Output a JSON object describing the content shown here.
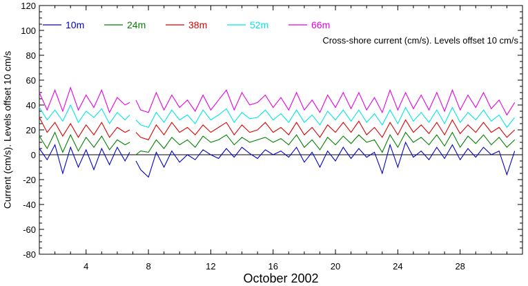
{
  "chart_data": {
    "type": "line",
    "xlabel": "October 2002",
    "ylabel": "Current (cm/s). Levels offset 10 cm/s",
    "annotation": "Cross-shore current (cm/s). Levels offset 10 cm/s",
    "xlim": [
      1,
      32
    ],
    "ylim": [
      -80,
      120
    ],
    "x_ticks": [
      4,
      8,
      12,
      16,
      20,
      24,
      28
    ],
    "y_ticks": [
      -80,
      -60,
      -40,
      -20,
      0,
      20,
      40,
      60,
      80,
      100,
      120
    ],
    "zero_line": true,
    "legend_position": "top-left",
    "gap": [
      6.8,
      7.2
    ],
    "series": [
      {
        "name": "10m",
        "color": "#0000cc",
        "offset": 0,
        "x": [
          1.0,
          1.5,
          2.0,
          2.5,
          3.0,
          3.5,
          4.0,
          4.5,
          5.0,
          5.5,
          6.0,
          6.5,
          6.8,
          7.2,
          7.5,
          8.0,
          8.5,
          9.0,
          9.5,
          10.0,
          10.5,
          11.0,
          11.5,
          12.0,
          12.5,
          13.0,
          13.5,
          14.0,
          14.5,
          15.0,
          15.5,
          16.0,
          16.5,
          17.0,
          17.5,
          18.0,
          18.5,
          19.0,
          19.5,
          20.0,
          20.5,
          21.0,
          21.5,
          22.0,
          22.5,
          23.0,
          23.5,
          24.0,
          24.5,
          25.0,
          25.5,
          26.0,
          26.5,
          27.0,
          27.5,
          28.0,
          28.5,
          29.0,
          29.5,
          30.0,
          30.5,
          31.0,
          31.5
        ],
        "y": [
          5,
          -4,
          8,
          -15,
          6,
          -10,
          4,
          -12,
          5,
          -8,
          6,
          -5,
          2,
          -5,
          -12,
          -18,
          2,
          -10,
          3,
          -6,
          0,
          -4,
          4,
          0,
          -3,
          5,
          -2,
          6,
          1,
          -3,
          4,
          0,
          3,
          -2,
          6,
          -6,
          2,
          -10,
          3,
          -5,
          6,
          -3,
          5,
          -2,
          2,
          -15,
          8,
          -10,
          10,
          -2,
          3,
          -4,
          6,
          -3,
          8,
          -4,
          5,
          -2,
          6,
          0,
          3,
          -16,
          3
        ]
      },
      {
        "name": "24m",
        "color": "#008000",
        "offset": 10,
        "x": [
          1.0,
          1.5,
          2.0,
          2.5,
          3.0,
          3.5,
          4.0,
          4.5,
          5.0,
          5.5,
          6.0,
          6.5,
          6.8,
          7.2,
          7.5,
          8.0,
          8.5,
          9.0,
          9.5,
          10.0,
          10.5,
          11.0,
          11.5,
          12.0,
          12.5,
          13.0,
          13.5,
          14.0,
          14.5,
          15.0,
          15.5,
          16.0,
          16.5,
          17.0,
          17.5,
          18.0,
          18.5,
          19.0,
          19.5,
          20.0,
          20.5,
          21.0,
          21.5,
          22.0,
          22.5,
          23.0,
          23.5,
          24.0,
          24.5,
          25.0,
          25.5,
          26.0,
          26.5,
          27.0,
          27.5,
          28.0,
          28.5,
          29.0,
          29.5,
          30.0,
          30.5,
          31.0,
          31.5
        ],
        "y": [
          15,
          5,
          18,
          2,
          16,
          3,
          14,
          6,
          15,
          4,
          12,
          8,
          10,
          0,
          3,
          2,
          12,
          5,
          14,
          8,
          12,
          6,
          15,
          10,
          12,
          16,
          8,
          14,
          10,
          12,
          14,
          10,
          13,
          8,
          16,
          6,
          12,
          4,
          14,
          8,
          15,
          9,
          16,
          10,
          12,
          2,
          16,
          6,
          18,
          10,
          14,
          8,
          16,
          7,
          18,
          6,
          15,
          9,
          16,
          8,
          14,
          6,
          12
        ]
      },
      {
        "name": "38m",
        "color": "#dd0000",
        "offset": 20,
        "x": [
          1.0,
          1.5,
          2.0,
          2.5,
          3.0,
          3.5,
          4.0,
          4.5,
          5.0,
          5.5,
          6.0,
          6.5,
          6.8,
          7.2,
          7.5,
          8.0,
          8.5,
          9.0,
          9.5,
          10.0,
          10.5,
          11.0,
          11.5,
          12.0,
          12.5,
          13.0,
          13.5,
          14.0,
          14.5,
          15.0,
          15.5,
          16.0,
          16.5,
          17.0,
          17.5,
          18.0,
          18.5,
          19.0,
          19.5,
          20.0,
          20.5,
          21.0,
          21.5,
          22.0,
          22.5,
          23.0,
          23.5,
          24.0,
          24.5,
          25.0,
          25.5,
          26.0,
          26.5,
          27.0,
          27.5,
          28.0,
          28.5,
          29.0,
          29.5,
          30.0,
          30.5,
          31.0,
          31.5
        ],
        "y": [
          30,
          18,
          26,
          15,
          25,
          14,
          24,
          16,
          26,
          14,
          22,
          18,
          20,
          18,
          14,
          12,
          24,
          16,
          26,
          18,
          22,
          16,
          24,
          18,
          22,
          26,
          16,
          24,
          18,
          20,
          26,
          18,
          22,
          16,
          26,
          16,
          22,
          14,
          24,
          18,
          26,
          18,
          27,
          16,
          22,
          14,
          26,
          16,
          28,
          18,
          24,
          17,
          26,
          16,
          28,
          17,
          24,
          18,
          26,
          18,
          22,
          14,
          20
        ]
      },
      {
        "name": "52m",
        "color": "#00e6e6",
        "offset": 30,
        "x": [
          1.0,
          1.5,
          2.0,
          2.5,
          3.0,
          3.5,
          4.0,
          4.5,
          5.0,
          5.5,
          6.0,
          6.5,
          6.8,
          7.2,
          7.5,
          8.0,
          8.5,
          9.0,
          9.5,
          10.0,
          10.5,
          11.0,
          11.5,
          12.0,
          12.5,
          13.0,
          13.5,
          14.0,
          14.5,
          15.0,
          15.5,
          16.0,
          16.5,
          17.0,
          17.5,
          18.0,
          18.5,
          19.0,
          19.5,
          20.0,
          20.5,
          21.0,
          21.5,
          22.0,
          22.5,
          23.0,
          23.5,
          24.0,
          24.5,
          25.0,
          25.5,
          26.0,
          26.5,
          27.0,
          27.5,
          28.0,
          28.5,
          29.0,
          29.5,
          30.0,
          30.5,
          31.0,
          31.5
        ],
        "y": [
          38,
          28,
          36,
          27,
          40,
          26,
          35,
          30,
          37,
          25,
          34,
          28,
          32,
          28,
          24,
          22,
          34,
          26,
          36,
          28,
          32,
          25,
          36,
          28,
          32,
          37,
          26,
          34,
          29,
          30,
          36,
          28,
          33,
          26,
          36,
          26,
          32,
          24,
          35,
          28,
          36,
          27,
          36,
          26,
          33,
          24,
          36,
          25,
          38,
          27,
          34,
          26,
          36,
          25,
          38,
          26,
          34,
          28,
          36,
          27,
          32,
          22,
          30
        ]
      },
      {
        "name": "66m",
        "color": "#e600e6",
        "offset": 40,
        "x": [
          1.0,
          1.5,
          2.0,
          2.5,
          3.0,
          3.5,
          4.0,
          4.5,
          5.0,
          5.5,
          6.0,
          6.5,
          6.8,
          7.2,
          7.5,
          8.0,
          8.5,
          9.0,
          9.5,
          10.0,
          10.5,
          11.0,
          11.5,
          12.0,
          12.5,
          13.0,
          13.5,
          14.0,
          14.5,
          15.0,
          15.5,
          16.0,
          16.5,
          17.0,
          17.5,
          18.0,
          18.5,
          19.0,
          19.5,
          20.0,
          20.5,
          21.0,
          21.5,
          22.0,
          22.5,
          23.0,
          23.5,
          24.0,
          24.5,
          25.0,
          25.5,
          26.0,
          26.5,
          27.0,
          27.5,
          28.0,
          28.5,
          29.0,
          29.5,
          30.0,
          30.5,
          31.0,
          31.5
        ],
        "y": [
          50,
          36,
          52,
          35,
          54,
          36,
          48,
          38,
          52,
          34,
          46,
          40,
          42,
          44,
          36,
          34,
          50,
          36,
          48,
          38,
          44,
          35,
          48,
          36,
          44,
          52,
          36,
          50,
          40,
          42,
          48,
          38,
          46,
          36,
          50,
          36,
          44,
          34,
          48,
          38,
          50,
          37,
          50,
          36,
          46,
          34,
          52,
          36,
          50,
          37,
          48,
          36,
          50,
          35,
          52,
          36,
          48,
          38,
          50,
          37,
          44,
          32,
          42
        ]
      }
    ]
  }
}
